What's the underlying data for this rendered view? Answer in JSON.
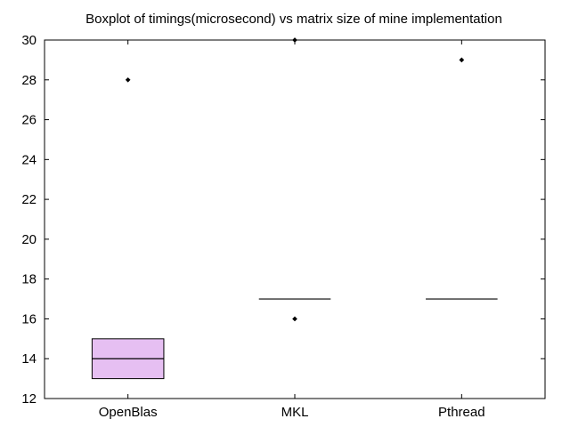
{
  "chart_data": {
    "type": "boxplot",
    "title": "Boxplot of timings(microsecond) vs matrix size of mine implementation",
    "xlabel": "",
    "ylabel": "",
    "categories": [
      "OpenBlas",
      "MKL",
      "Pthread"
    ],
    "ylim": [
      12,
      30
    ],
    "yticks": [
      12,
      14,
      16,
      18,
      20,
      22,
      24,
      26,
      28,
      30
    ],
    "grid": false,
    "legend": "none",
    "box_fill_color": "#e6bff2",
    "series": [
      {
        "category": "OpenBlas",
        "q1": 13,
        "median": 14,
        "q3": 15,
        "outliers": [
          28
        ]
      },
      {
        "category": "MKL",
        "q1": 17,
        "median": 17,
        "q3": 17,
        "outliers": [
          30,
          16
        ]
      },
      {
        "category": "Pthread",
        "q1": 17,
        "median": 17,
        "q3": 17,
        "outliers": [
          29
        ]
      }
    ]
  }
}
